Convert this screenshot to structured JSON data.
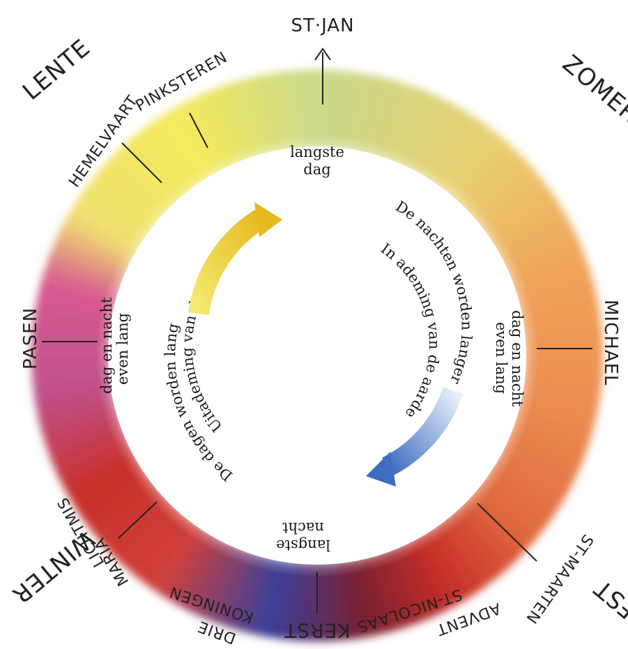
{
  "seasons": {
    "spring": "LENTE",
    "summer": "ZOMER",
    "autumn": "HERFST",
    "winter": "WINTER"
  },
  "feasts": {
    "st_jan": "ST·JAN",
    "pinksteren": "PINKSTEREN",
    "hemelvaart": "HEMELVAART",
    "pasen": "PASEN",
    "michael": "MICHAEL",
    "st_maarten": "ST-MAARTEN",
    "advent": "ADVENT",
    "st_nicolaas": "ST-NICOLAAS",
    "kerst": "KERST",
    "drie_koningen_1": "DRIE",
    "drie_koningen_2": "KONINGEN",
    "maria_lichtmis_1": "MARIA",
    "maria_lichtmis_2": "LICHTMIS"
  },
  "inner": {
    "longest_day_1": "langste",
    "longest_day_2": "dag",
    "longest_night_1": "langste",
    "longest_night_2": "nacht",
    "nights_longer": "De nachten worden langer",
    "inhaling": "In ademing van de aarde",
    "equinox_right_1": "dag en nacht",
    "equinox_right_2": "even lang",
    "days_longer": "De dagen worden langer",
    "exhaling": "Uitademing van de aarde",
    "equinox_left_1": "dag en nacht",
    "equinox_left_2": "even lang"
  },
  "colors": {
    "spring_yellow": "#f3ea5c",
    "summer_green": "#c9d98a",
    "summer_orange": "#f0a45a",
    "autumn_red": "#c8302a",
    "winter_blue": "#3b3f9a",
    "winter_magenta": "#c0508a",
    "arrow_yellow": "#f0c020",
    "arrow_blue": "#4a78c8"
  }
}
